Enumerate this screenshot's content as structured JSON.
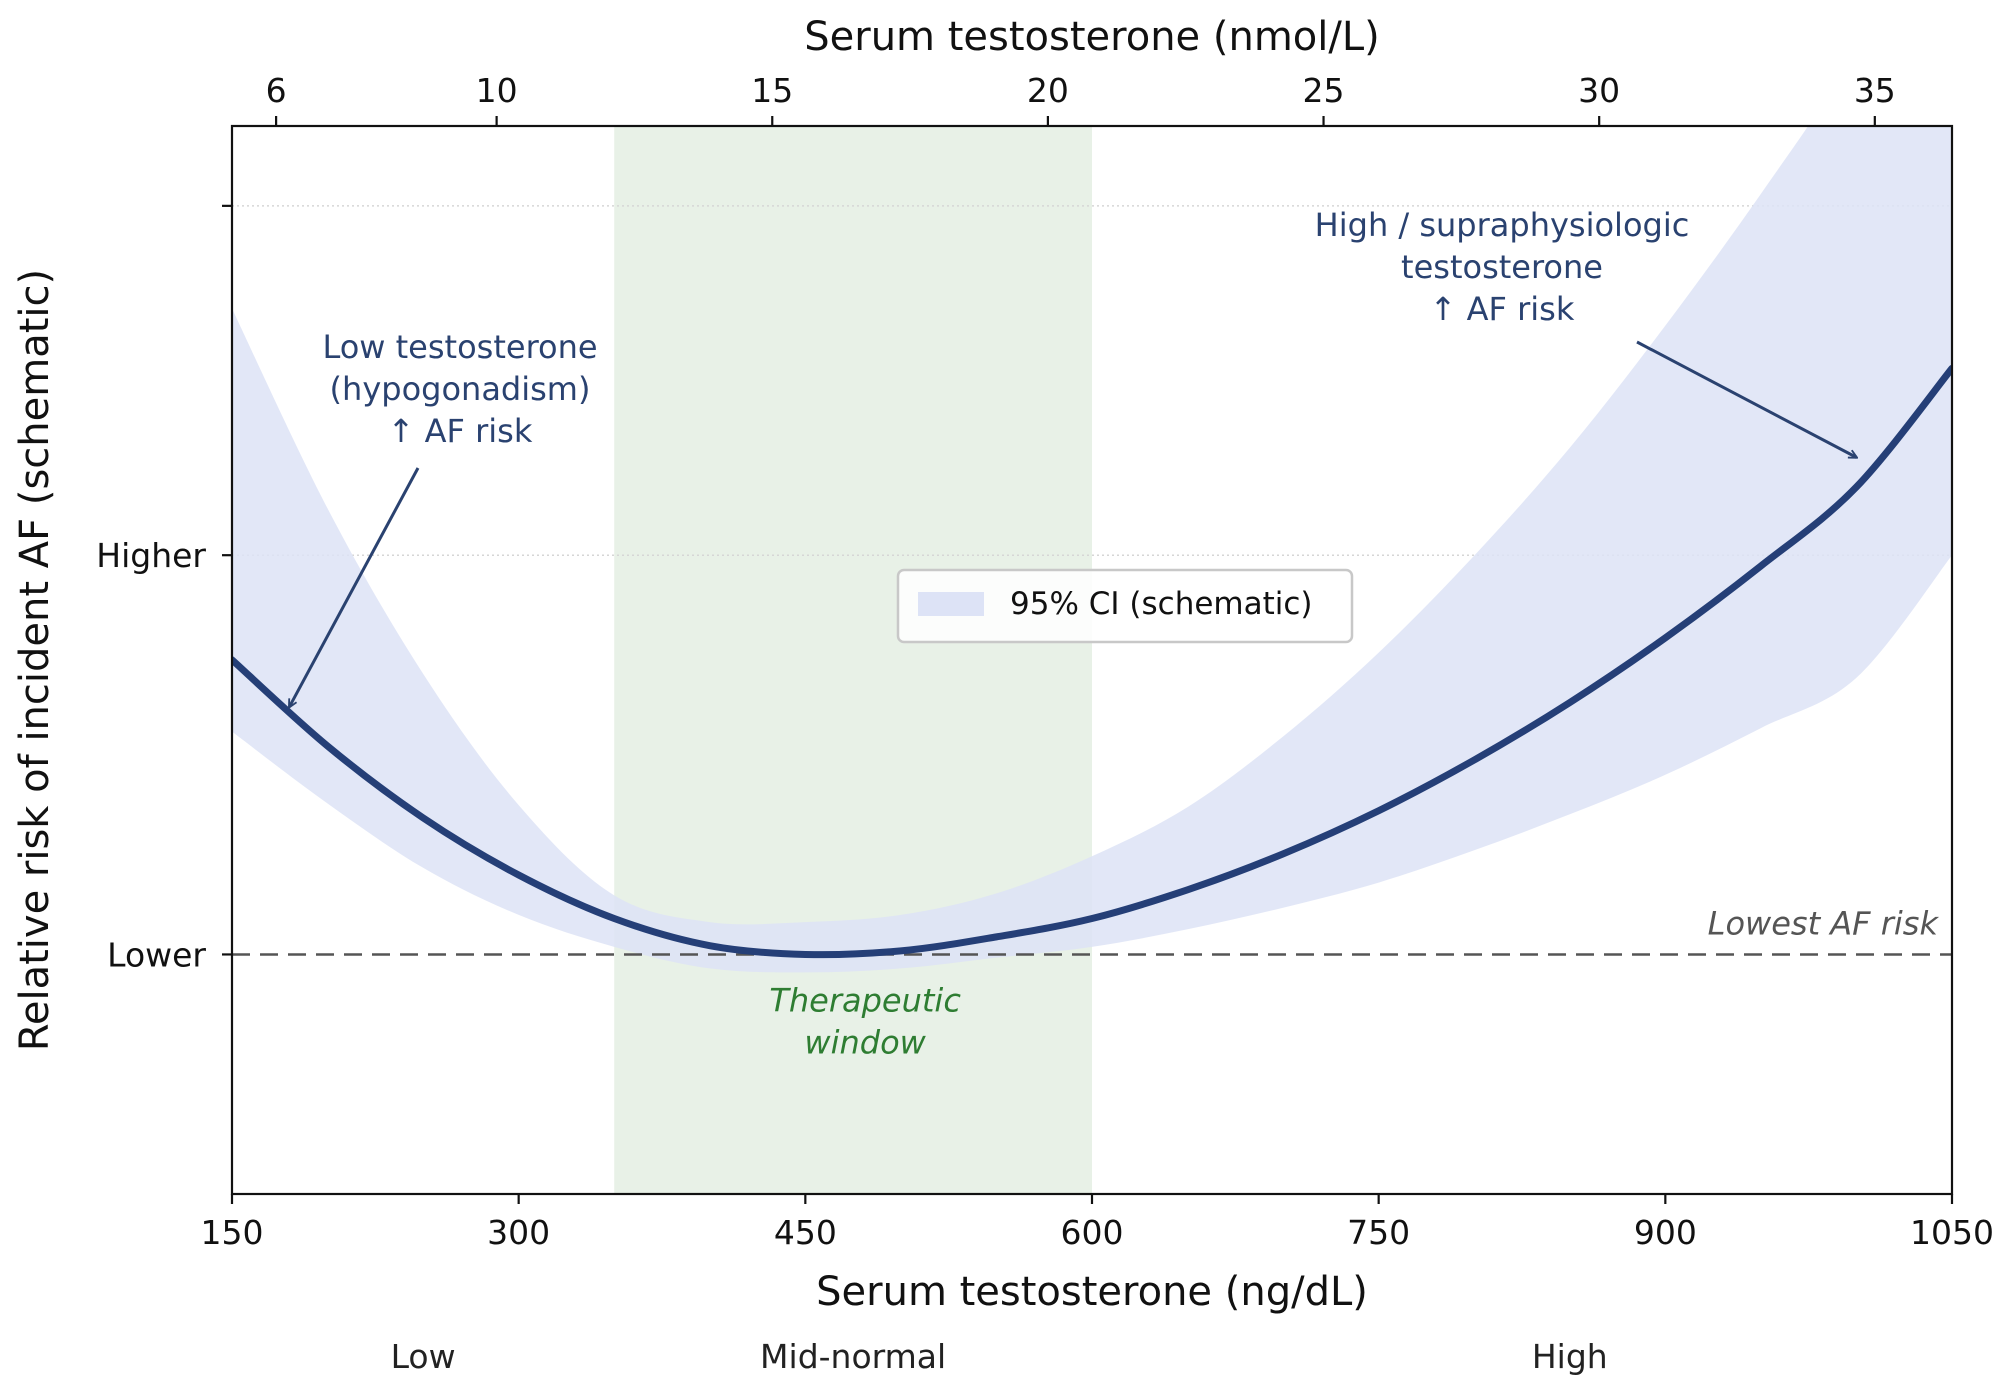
{
  "chart_data": {
    "type": "line",
    "title": "",
    "xlabel": "Serum testosterone (ng/dL)",
    "x2label": "Serum testosterone (nmol/L)",
    "ylabel": "Relative risk of incident AF  (schematic)",
    "xlim": [
      150,
      1050
    ],
    "x2lim": [
      5.2,
      36.4
    ],
    "ylim": [
      -0.6,
      2.075
    ],
    "x_ticks": [
      150,
      300,
      450,
      600,
      750,
      900,
      1050
    ],
    "x2_ticks": [
      6,
      10,
      15,
      20,
      25,
      30,
      35
    ],
    "y_ticks": [
      {
        "value": 0,
        "label": "Lower"
      },
      {
        "value": 1,
        "label": "Higher"
      },
      {
        "value": 1.875,
        "label": ""
      }
    ],
    "y_gridlines": [
      1,
      1.875
    ],
    "series": [
      {
        "name": "",
        "x": [
          150,
          200,
          250,
          300,
          350,
          400,
          450,
          500,
          550,
          600,
          650,
          700,
          750,
          800,
          850,
          900,
          950,
          1000,
          1050
        ],
        "y": [
          0.738,
          0.522,
          0.342,
          0.199,
          0.09,
          0.022,
          0.0,
          0.009,
          0.044,
          0.09,
          0.162,
          0.252,
          0.36,
          0.487,
          0.631,
          0.793,
          0.973,
          1.171,
          1.468
        ]
      }
    ],
    "confidence_band": {
      "name": "95% CI (schematic)",
      "x": [
        150,
        200,
        250,
        300,
        350,
        400,
        450,
        500,
        550,
        600,
        650,
        700,
        750,
        800,
        850,
        900,
        950,
        1000,
        1050
      ],
      "lower": [
        0.558,
        0.378,
        0.217,
        0.099,
        0.019,
        -0.035,
        -0.045,
        -0.035,
        -0.008,
        0.019,
        0.063,
        0.117,
        0.18,
        0.261,
        0.351,
        0.45,
        0.567,
        0.693,
        1.0
      ],
      "upper": [
        1.618,
        1.117,
        0.703,
        0.374,
        0.148,
        0.081,
        0.081,
        0.099,
        0.153,
        0.246,
        0.369,
        0.546,
        0.756,
        0.999,
        1.269,
        1.575,
        1.905,
        2.262,
        2.7
      ]
    },
    "therapeutic_window": {
      "x_start": 350,
      "x_end": 600,
      "label_line1": "Therapeutic",
      "label_line2": "window",
      "color": "#2e7d32"
    },
    "reference_line": {
      "y": 0,
      "label": "Lowest AF risk"
    },
    "annotations": {
      "low": {
        "line1": "Low testosterone",
        "line2": "(hypogonadism)",
        "line3": "↑ AF risk",
        "arrow_to": {
          "x": 180,
          "y": 0.62
        }
      },
      "high": {
        "line1": "High / supraphysiologic",
        "line2": "testosterone",
        "line3": "↑ AF risk",
        "arrow_to": {
          "x": 1000,
          "y": 1.245
        }
      }
    },
    "category_labels": [
      {
        "x": 250,
        "label": "Low"
      },
      {
        "x": 475,
        "label": "Mid-normal"
      },
      {
        "x": 850,
        "label": "High"
      }
    ],
    "legend": {
      "label": "95% CI (schematic)",
      "placement": "center"
    },
    "colors": {
      "line": "#253f77",
      "band": "#dde3f6",
      "window": "#e8f1e7",
      "window_text": "#2e7d32",
      "annotation": "#2a4270",
      "reference": "#555555",
      "grid": "#d6d6d6"
    }
  }
}
